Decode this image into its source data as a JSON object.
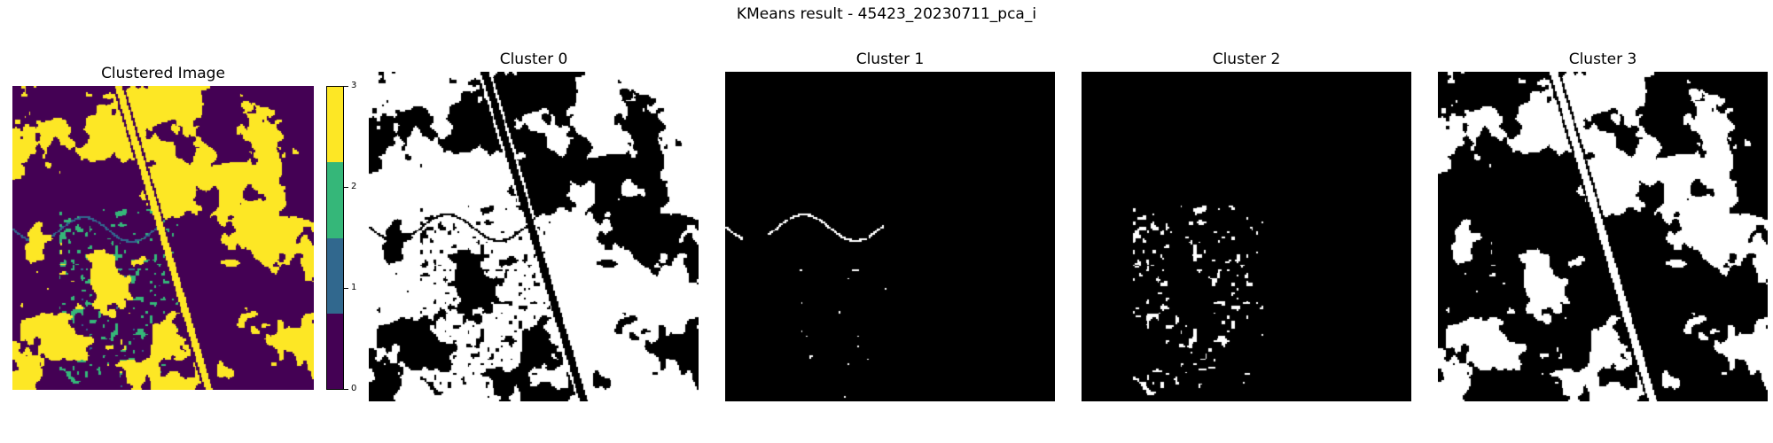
{
  "suptitle": "KMeans result - 45423_20230711_pca_i",
  "panels": {
    "clustered": {
      "title": "Clustered Image"
    },
    "cluster0": {
      "title": "Cluster 0"
    },
    "cluster1": {
      "title": "Cluster 1"
    },
    "cluster2": {
      "title": "Cluster 2"
    },
    "cluster3": {
      "title": "Cluster 3"
    }
  },
  "colorbar": {
    "tick_labels": [
      "0",
      "1",
      "2",
      "3"
    ],
    "colors": [
      "#440154",
      "#31688e",
      "#35b779",
      "#fde725"
    ]
  },
  "mask_colors": {
    "on": "#ffffff",
    "off": "#000000"
  }
}
